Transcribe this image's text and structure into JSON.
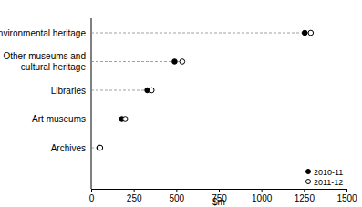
{
  "chart_data": {
    "type": "dot",
    "orientation": "horizontal",
    "categories": [
      "Environmental heritage",
      "Other museums and cultural heritage",
      "Libraries",
      "Art museums",
      "Archives"
    ],
    "series": [
      {
        "name": "2010-11",
        "color": "#000000",
        "marker": "circle",
        "values": [
          1255,
          490,
          330,
          180,
          48
        ]
      },
      {
        "name": "2011-12",
        "color": "#000000",
        "marker": "open-circle",
        "values": [
          1290,
          535,
          355,
          200,
          53
        ]
      }
    ],
    "xlabel": "$m",
    "xlim": [
      0,
      1500
    ],
    "xticks": [
      0,
      250,
      500,
      750,
      1000,
      1250,
      1500
    ],
    "legend": "lower right"
  }
}
